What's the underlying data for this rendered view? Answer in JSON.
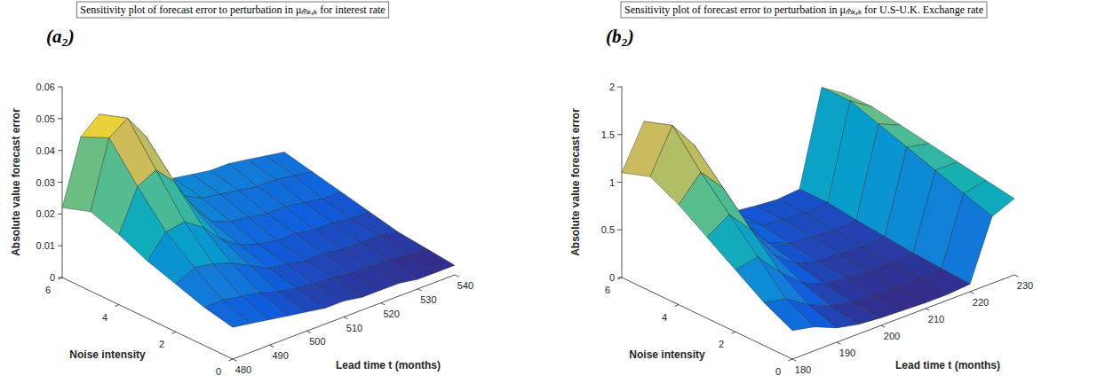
{
  "chart_data": [
    {
      "type": "surface",
      "label": "(a₂)",
      "title": "Sensitivity plot of forecast error to perturbation in μₘ̂ₖ,ₖ for interest rate",
      "x_label": "Lead time t (months)",
      "y_label": "Noise intensity",
      "z_label": "Absolute value forecast error",
      "x": [
        480,
        485,
        490,
        495,
        500,
        505,
        510,
        515,
        520,
        525,
        530,
        535,
        540
      ],
      "y": [
        0,
        1,
        2,
        3,
        4,
        5,
        6
      ],
      "z": [
        [
          0.01,
          0.009,
          0.008,
          0.007,
          0.006,
          0.005,
          0.005,
          0.004,
          0.004,
          0.004,
          0.003,
          0.003,
          0.003
        ],
        [
          0.012,
          0.012,
          0.011,
          0.01,
          0.008,
          0.007,
          0.006,
          0.006,
          0.005,
          0.005,
          0.005,
          0.004,
          0.004
        ],
        [
          0.015,
          0.018,
          0.017,
          0.015,
          0.012,
          0.009,
          0.008,
          0.007,
          0.007,
          0.006,
          0.006,
          0.006,
          0.005
        ],
        [
          0.018,
          0.025,
          0.026,
          0.022,
          0.016,
          0.012,
          0.01,
          0.009,
          0.009,
          0.008,
          0.008,
          0.007,
          0.007
        ],
        [
          0.022,
          0.035,
          0.038,
          0.032,
          0.022,
          0.015,
          0.013,
          0.012,
          0.011,
          0.011,
          0.01,
          0.009,
          0.009
        ],
        [
          0.025,
          0.046,
          0.05,
          0.042,
          0.028,
          0.019,
          0.016,
          0.015,
          0.014,
          0.013,
          0.013,
          0.012,
          0.011
        ],
        [
          0.022,
          0.042,
          0.047,
          0.04,
          0.027,
          0.02,
          0.018,
          0.017,
          0.016,
          0.016,
          0.015,
          0.014,
          0.013
        ]
      ],
      "xlim": [
        480,
        540
      ],
      "ylim": [
        0,
        6
      ],
      "zlim": [
        0,
        0.06
      ],
      "xticks": [
        480,
        490,
        500,
        510,
        520,
        530,
        540
      ],
      "yticks": [
        0,
        2,
        4,
        6
      ],
      "zticks": [
        0,
        0.01,
        0.02,
        0.03,
        0.04,
        0.05,
        0.06
      ],
      "grid": false
    },
    {
      "type": "surface",
      "label": "(b₂)",
      "title": "Sensitivity plot of forecast error to perturbation in μₘ̂ₖ,ₖ for U.S-U.K. Exchange rate",
      "x_label": "Lead time t (months)",
      "y_label": "Noise intensity",
      "z_label": "Absolute value forecast error",
      "x": [
        180,
        185,
        190,
        195,
        200,
        205,
        210,
        215,
        220,
        225,
        230
      ],
      "y": [
        0,
        1,
        2,
        3,
        4,
        5,
        6
      ],
      "z": [
        [
          0.3,
          0.25,
          0.15,
          0.1,
          0.08,
          0.07,
          0.06,
          0.06,
          0.08,
          0.7,
          0.8
        ],
        [
          0.45,
          0.4,
          0.25,
          0.15,
          0.1,
          0.08,
          0.08,
          0.08,
          0.1,
          0.8,
          0.85
        ],
        [
          0.65,
          0.7,
          0.45,
          0.25,
          0.15,
          0.12,
          0.1,
          0.1,
          0.12,
          0.9,
          0.9
        ],
        [
          0.85,
          1.0,
          0.75,
          0.4,
          0.22,
          0.16,
          0.14,
          0.13,
          0.15,
          1.0,
          0.95
        ],
        [
          1.05,
          1.3,
          1.05,
          0.6,
          0.3,
          0.2,
          0.18,
          0.16,
          0.18,
          1.1,
          1.0
        ],
        [
          1.2,
          1.65,
          1.35,
          0.8,
          0.4,
          0.25,
          0.22,
          0.2,
          0.22,
          1.2,
          1.05
        ],
        [
          1.1,
          1.55,
          1.3,
          0.75,
          0.38,
          0.25,
          0.22,
          0.2,
          0.22,
          1.2,
          1.05
        ]
      ],
      "xlim": [
        180,
        230
      ],
      "ylim": [
        0,
        6
      ],
      "zlim": [
        0,
        2
      ],
      "xticks": [
        180,
        190,
        200,
        210,
        220,
        230
      ],
      "yticks": [
        0,
        2,
        4,
        6
      ],
      "zticks": [
        0,
        0.5,
        1,
        1.5,
        2
      ],
      "grid": false
    }
  ]
}
